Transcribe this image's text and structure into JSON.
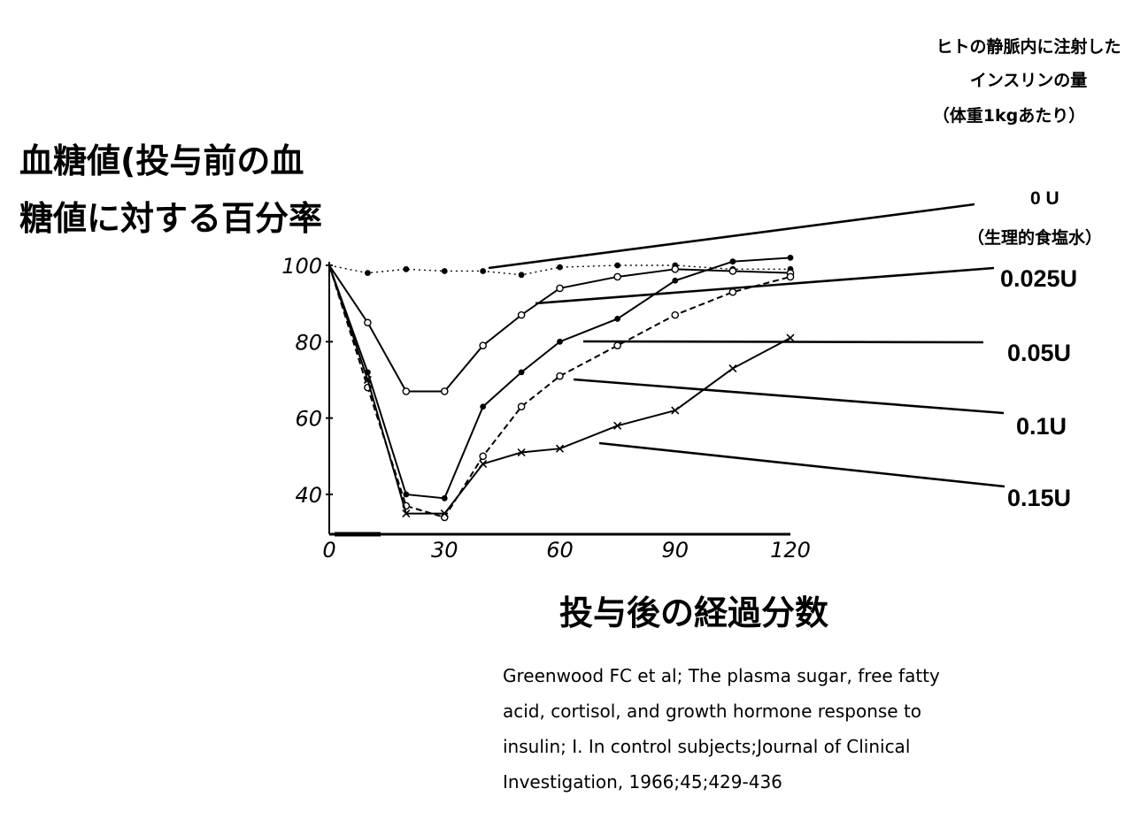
{
  "y_axis_label": {
    "line1": "血糖値(投与前の血",
    "line2": "糖値に対する百分率"
  },
  "x_axis_label": "投与後の経過分数",
  "legend_title": {
    "line1": "ヒトの静脈内に注射した",
    "line2": "インスリンの量",
    "line3": "（体重1kgあたり）"
  },
  "legend": [
    {
      "label": "0 U",
      "sublabel": "（生理的食塩水）"
    },
    {
      "label": "0.025U"
    },
    {
      "label": "0.05U"
    },
    {
      "label": "0.1U"
    },
    {
      "label": "0.15U"
    }
  ],
  "citation": [
    "Greenwood FC et al; The plasma sugar, free fatty",
    "acid, cortisol, and growth hormone response to",
    "insulin; I.  In control subjects;Journal of Clinical",
    "Investigation, 1966;45;429-436"
  ],
  "chart_data": {
    "type": "line",
    "x_ticks": [
      "0",
      "30",
      "60",
      "90",
      "120"
    ],
    "y_ticks": [
      "40",
      "60",
      "80",
      "100"
    ],
    "xlim": [
      0,
      120
    ],
    "ylim": [
      30,
      100
    ],
    "grid": false,
    "series": [
      {
        "name": "0 U",
        "style": "dotted",
        "marker": "dot",
        "x": [
          0,
          10,
          20,
          30,
          40,
          50,
          60,
          75,
          90,
          105,
          120
        ],
        "y": [
          100,
          98,
          99,
          98.5,
          98.5,
          97.5,
          99.5,
          100,
          100,
          99,
          99
        ]
      },
      {
        "name": "0.025U",
        "style": "solid",
        "marker": "open-circle",
        "x": [
          0,
          10,
          20,
          30,
          40,
          50,
          60,
          75,
          90,
          105,
          120
        ],
        "y": [
          100,
          85,
          67,
          67,
          79,
          87,
          94,
          97,
          99,
          98.5,
          98
        ]
      },
      {
        "name": "0.05U",
        "style": "solid",
        "marker": "dot",
        "x": [
          0,
          10,
          20,
          30,
          40,
          50,
          60,
          75,
          90,
          105,
          120
        ],
        "y": [
          100,
          72,
          40,
          39,
          63,
          72,
          80,
          86,
          96,
          101,
          102
        ]
      },
      {
        "name": "0.1U",
        "style": "dashed",
        "marker": "open-circle",
        "x": [
          0,
          10,
          20,
          30,
          40,
          50,
          60,
          75,
          90,
          105,
          120
        ],
        "y": [
          100,
          68,
          37,
          34,
          50,
          63,
          71,
          79,
          87,
          93,
          97
        ]
      },
      {
        "name": "0.15U",
        "style": "solid",
        "marker": "cross",
        "x": [
          0,
          10,
          20,
          30,
          40,
          50,
          60,
          75,
          90,
          105,
          120
        ],
        "y": [
          100,
          70,
          35,
          35,
          48,
          51,
          52,
          58,
          62,
          73,
          81
        ]
      }
    ]
  }
}
